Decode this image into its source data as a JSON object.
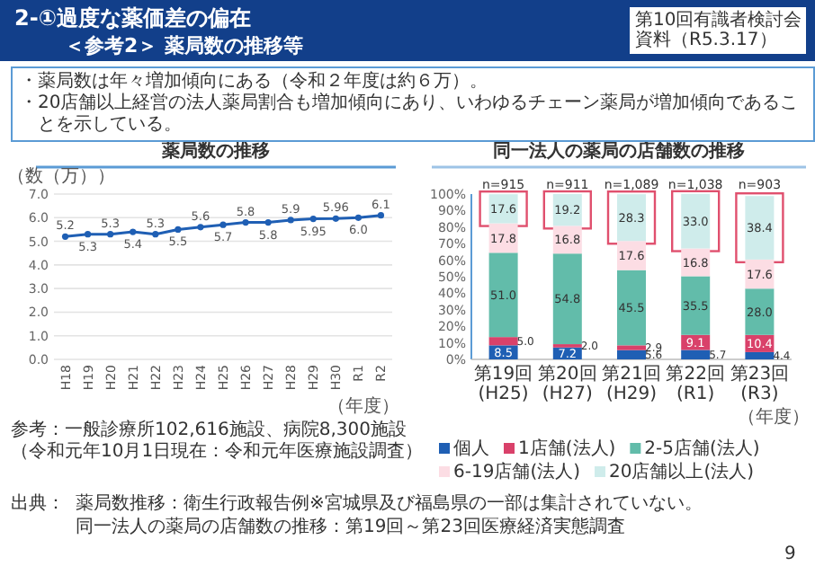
{
  "chart_data": [
    {
      "type": "other",
      "title": "2-①過度な薬価差の偏在",
      "subtitle": "＜参考2＞ 薬局数の推移等",
      "annotations": [
        "第10回有識者検討会",
        "資料（R5.3.17）",
        "・薬局数は年々増加傾向にある（令和２年度は約６万）。",
        "・20店舗以上経営の法人薬局割合も増加傾向にあり、いわゆるチェーン薬局が増加傾向であることを示している。",
        "出典：",
        "薬局数推移：衛生行政報告例※宮城県及び福島県の一部は集計されていない。",
        "同一法人の薬局の店舗数の推移：第19回～第23回医療経済実態調査",
        "9"
      ]
    },
    {
      "type": "line",
      "title": "薬局数の推移",
      "ylabel": "（数（万））",
      "xlabel": "（年度）",
      "categories": [
        "H18",
        "H19",
        "H20",
        "H21",
        "H22",
        "H23",
        "H24",
        "H25",
        "H26",
        "H27",
        "H28",
        "H29",
        "H30",
        "R1",
        "R2"
      ],
      "values": [
        5.2,
        5.3,
        5.3,
        5.4,
        5.3,
        5.5,
        5.6,
        5.7,
        5.8,
        5.8,
        5.9,
        5.95,
        5.96,
        6.0,
        6.1
      ],
      "value_labels": [
        "5.2",
        "5.3",
        "5.3",
        "5.4",
        "5.3",
        "5.5",
        "5.6",
        "5.7",
        "5.8",
        "5.8",
        "5.9",
        "5.95",
        "5.96",
        "6.0",
        "6.1"
      ],
      "color": "#1f5fb4",
      "marker": "circle",
      "grid": "y",
      "ylim": [
        0,
        7
      ],
      "yticks": [
        {
          "value": 0,
          "label": "0.0"
        },
        {
          "value": 1,
          "label": "1.0"
        },
        {
          "value": 2,
          "label": "2.0"
        },
        {
          "value": 3,
          "label": "3.0"
        },
        {
          "value": 4,
          "label": "4.0"
        },
        {
          "value": 5,
          "label": "5.0"
        },
        {
          "value": 6,
          "label": "6.0"
        },
        {
          "value": 7,
          "label": "7.0"
        }
      ],
      "annotations": [
        "参考：一般診療所102,616施設、病院8,300施設",
        "（令和元年10月1日現在：令和元年医療施設調査）"
      ]
    },
    {
      "type": "bar",
      "title": "同一法人の薬局の店舗数の推移",
      "xlabel": "（年度）",
      "stacked": true,
      "legend": "bottom",
      "categories": [
        "第19回(H25)",
        "第20回(H27)",
        "第21回(H29)",
        "第22回(R1)",
        "第23回(R3)"
      ],
      "series": [
        {
          "name": "個人",
          "color": "#1f5fb4",
          "values": [
            8.5,
            7.2,
            5.6,
            5.7,
            4.4
          ],
          "value_labels": [
            "8.5",
            "7.2",
            "5.6",
            "5.7",
            "4.4"
          ]
        },
        {
          "name": "1店舗(法人)",
          "color": "#d9416a",
          "values": [
            5.0,
            2.0,
            2.9,
            9.1,
            10.4
          ],
          "value_labels": [
            "5.0",
            "2.0",
            "2.9",
            "9.1",
            "10.4"
          ]
        },
        {
          "name": "2-5店舗(法人)",
          "color": "#62bcaa",
          "values": [
            51.0,
            54.8,
            45.5,
            35.5,
            28.0
          ],
          "value_labels": [
            "51.0",
            "54.8",
            "45.5",
            "35.5",
            "28.0"
          ]
        },
        {
          "name": "6-19店舗(法人)",
          "color": "#fcdde4",
          "values": [
            17.8,
            16.8,
            17.6,
            16.8,
            17.6
          ],
          "value_labels": [
            "17.8",
            "16.8",
            "17.6",
            "16.8",
            "17.6"
          ]
        },
        {
          "name": "20店舗以上(法人)",
          "color": "#cfeceb",
          "values": [
            17.6,
            19.2,
            28.3,
            33.0,
            38.4
          ],
          "value_labels": [
            "17.6",
            "19.2",
            "28.3",
            "33.0",
            "38.4"
          ]
        }
      ],
      "annotations": [
        {
          "text": "n=915",
          "x": "第19回(H25)",
          "y": 100
        },
        {
          "text": "n=911",
          "x": "第20回(H27)",
          "y": 100
        },
        {
          "text": "n=1,089",
          "x": "第21回(H29)",
          "y": 100
        },
        {
          "text": "n=1,038",
          "x": "第22回(R1)",
          "y": 100
        },
        {
          "text": "n=903",
          "x": "第23回(R3)",
          "y": 100
        }
      ],
      "ylim": [
        0,
        100
      ],
      "yticks": [
        {
          "value": 0,
          "label": "0%"
        },
        {
          "value": 10,
          "label": "10%"
        },
        {
          "value": 20,
          "label": "20%"
        },
        {
          "value": 30,
          "label": "30%"
        },
        {
          "value": 40,
          "label": "40%"
        },
        {
          "value": 50,
          "label": "50%"
        },
        {
          "value": 60,
          "label": "60%"
        },
        {
          "value": 70,
          "label": "70%"
        },
        {
          "value": 80,
          "label": "80%"
        },
        {
          "value": 90,
          "label": "90%"
        },
        {
          "value": 100,
          "label": "100%"
        }
      ]
    }
  ]
}
